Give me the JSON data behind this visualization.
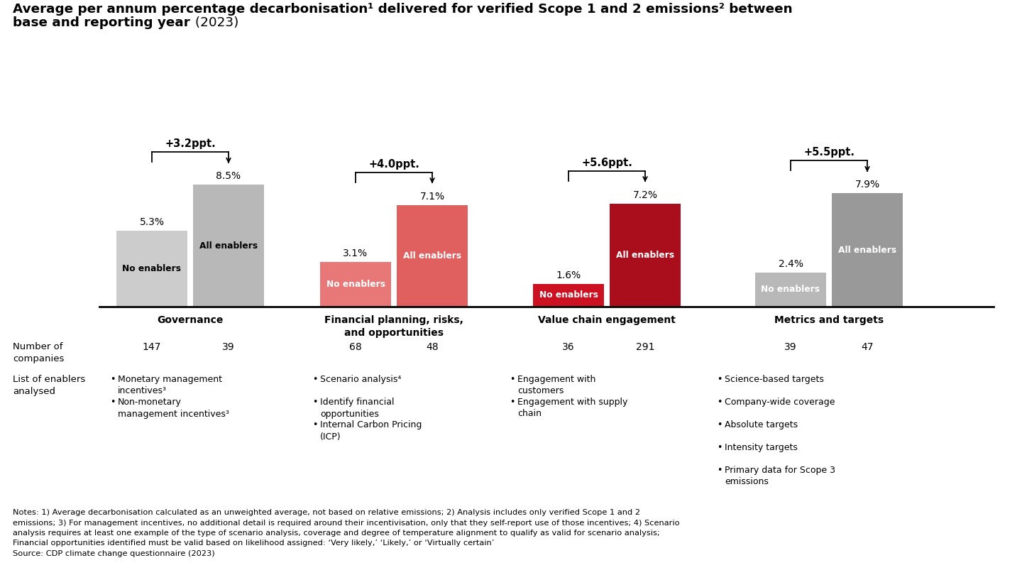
{
  "background_color": "#ffffff",
  "categories": [
    {
      "name": "Governance",
      "no_enablers_value": 5.3,
      "all_enablers_value": 8.5,
      "diff": "+3.2ppt.",
      "no_enablers_color": "#cccccc",
      "all_enablers_color": "#b8b8b8",
      "label_color_no": "black",
      "label_color_all": "black",
      "no_enablers_n": 147,
      "all_enablers_n": 39,
      "enablers": [
        "Monetary management\nincentives³",
        "Non-monetary\nmanagement incentives³"
      ]
    },
    {
      "name": "Financial planning, risks,\nand opportunities",
      "no_enablers_value": 3.1,
      "all_enablers_value": 7.1,
      "diff": "+4.0ppt.",
      "no_enablers_color": "#e87878",
      "all_enablers_color": "#e06060",
      "label_color_no": "white",
      "label_color_all": "white",
      "no_enablers_n": 68,
      "all_enablers_n": 48,
      "enablers": [
        "Scenario analysis⁴",
        "Identify financial\nopportunities",
        "Internal Carbon Pricing\n(ICP)"
      ]
    },
    {
      "name": "Value chain engagement",
      "no_enablers_value": 1.6,
      "all_enablers_value": 7.2,
      "diff": "+5.6ppt.",
      "no_enablers_color": "#cc1122",
      "all_enablers_color": "#aa0e1c",
      "label_color_no": "white",
      "label_color_all": "white",
      "no_enablers_n": 36,
      "all_enablers_n": 291,
      "enablers": [
        "Engagement with\ncustomers",
        "Engagement with supply\nchain"
      ]
    },
    {
      "name": "Metrics and targets",
      "no_enablers_value": 2.4,
      "all_enablers_value": 7.9,
      "diff": "+5.5ppt.",
      "no_enablers_color": "#b8b8b8",
      "all_enablers_color": "#999999",
      "label_color_no": "white",
      "label_color_all": "white",
      "no_enablers_n": 39,
      "all_enablers_n": 47,
      "enablers": [
        "Science-based targets",
        "Company-wide coverage",
        "Absolute targets",
        "Intensity targets",
        "Primary data for Scope 3\nemissions"
      ]
    }
  ],
  "notes_line1": "Notes: 1) Average decarbonisation calculated as an unweighted average, not based on relative emissions; 2) Analysis includes only verified Scope 1 and 2",
  "notes_line2": "emissions; 3) For management incentives, no additional detail is required around their incentivisation, only that they self-report use of those incentives; 4) Scenario",
  "notes_line3": "analysis requires at least one example of the type of scenario analysis, coverage and degree of temperature alignment to qualify as valid for scenario analysis;",
  "notes_line4": "Financial opportunities identified must be valid based on likelihood assigned: ‘Very likely,’ ‘Likely,’ or ‘Virtually certain’",
  "notes_line5": "Source: CDP climate change questionnaire (2023)"
}
